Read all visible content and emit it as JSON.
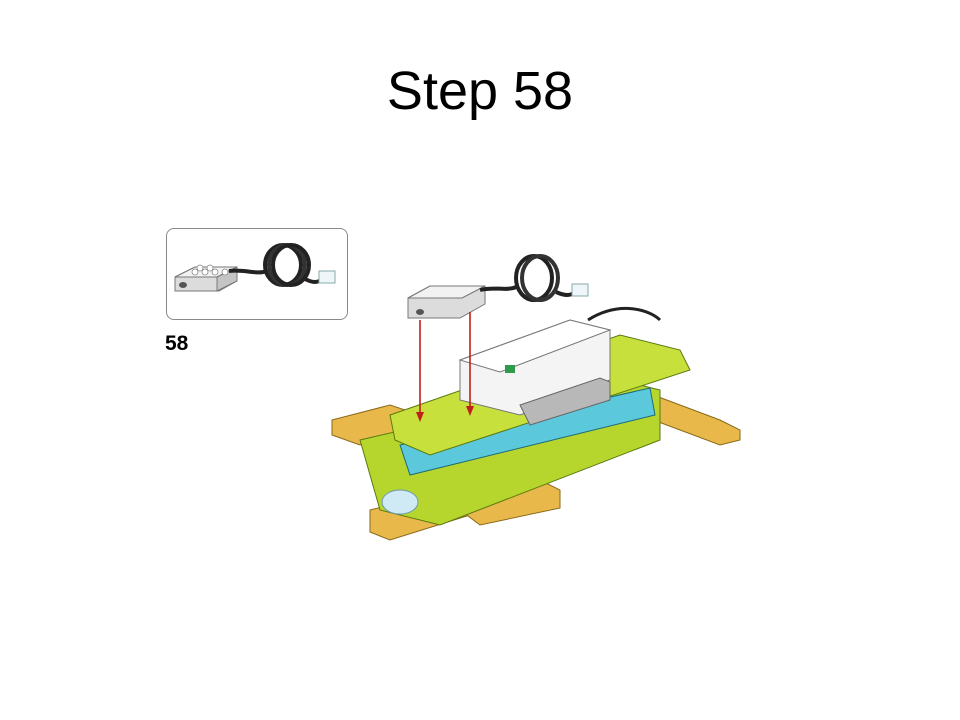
{
  "slide": {
    "title": "Step 58"
  },
  "callout": {
    "step_number": "58",
    "part_icon": "medium-motor-icon"
  },
  "assembly": {
    "model_icon": "turtle-model-icon",
    "arrow_icon": "down-arrow-icon",
    "colors": {
      "lime": "#c8e03c",
      "tan": "#e8b84a",
      "azure": "#5cc8dc",
      "white": "#f4f4f4",
      "gray": "#b8b8b8",
      "cable": "#2a2a2a",
      "arrow": "#c0201a"
    }
  }
}
